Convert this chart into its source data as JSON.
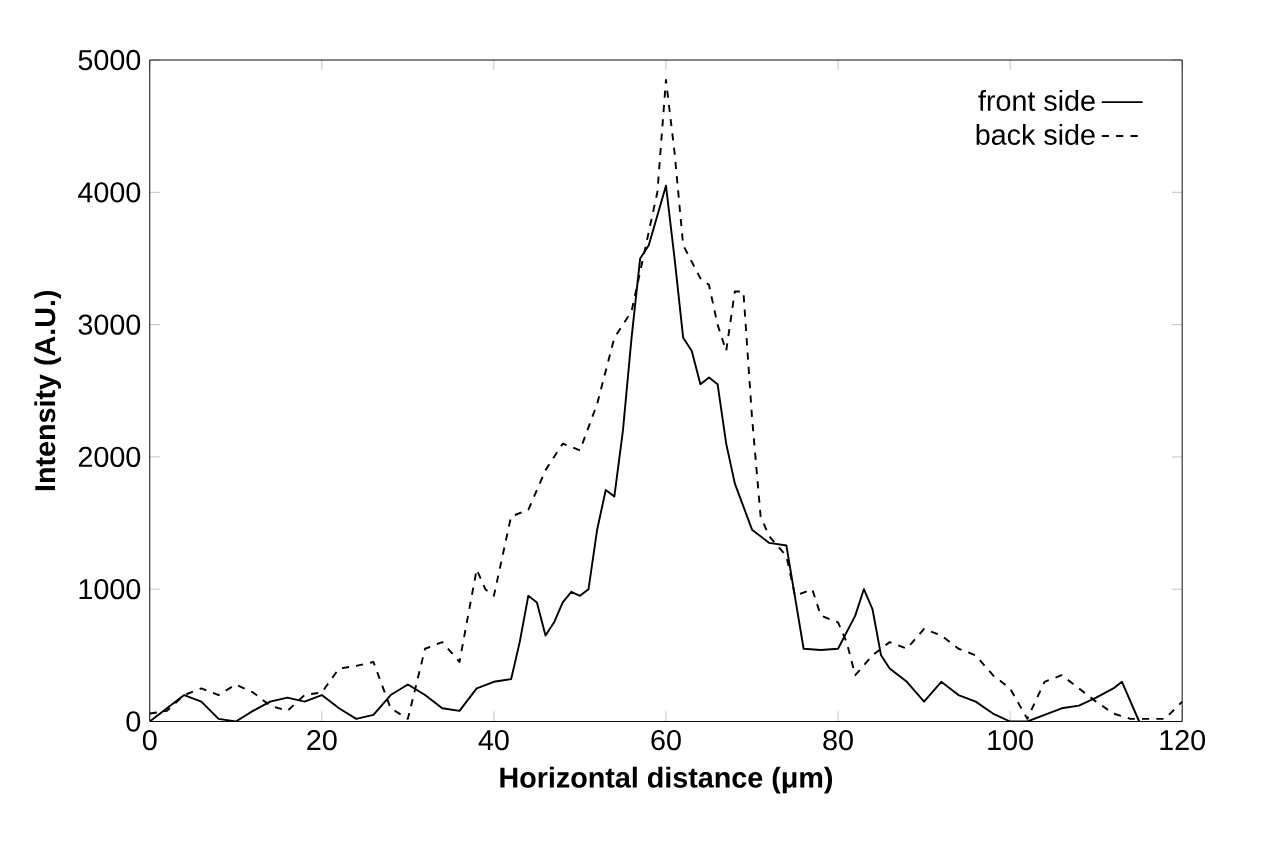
{
  "chart_data": {
    "type": "line",
    "xlabel": "Horizontal distance (μm)",
    "ylabel": "Intensity (A.U.)",
    "xlim": [
      0,
      120
    ],
    "ylim": [
      0,
      5000
    ],
    "xticks": [
      0,
      20,
      40,
      60,
      80,
      100,
      120
    ],
    "yticks": [
      0,
      1000,
      2000,
      3000,
      4000,
      5000
    ],
    "legend": "top right",
    "grid": false,
    "marker": "none",
    "series": [
      {
        "name": "front side",
        "color": "#000000",
        "line_style": "solid",
        "x": [
          0,
          2,
          4,
          6,
          8,
          10,
          12,
          14,
          16,
          18,
          20,
          22,
          24,
          26,
          28,
          30,
          32,
          34,
          36,
          38,
          40,
          42,
          43,
          44,
          45,
          46,
          47,
          48,
          49,
          50,
          51,
          52,
          53,
          54,
          55,
          56,
          57,
          58,
          60,
          61,
          62,
          63,
          64,
          65,
          66,
          67,
          68,
          70,
          72,
          74,
          76,
          78,
          80,
          82,
          83,
          84,
          85,
          86,
          88,
          90,
          92,
          94,
          96,
          98,
          100,
          102,
          104,
          106,
          108,
          110,
          112,
          113,
          115
        ],
        "values": [
          0,
          100,
          200,
          150,
          20,
          0,
          80,
          150,
          180,
          150,
          200,
          100,
          20,
          50,
          200,
          280,
          200,
          100,
          80,
          250,
          300,
          320,
          600,
          950,
          900,
          650,
          750,
          900,
          980,
          950,
          1000,
          1450,
          1750,
          1700,
          2200,
          2900,
          3500,
          3600,
          4050,
          3500,
          2900,
          2800,
          2550,
          2600,
          2550,
          2100,
          1800,
          1450,
          1350,
          1330,
          550,
          540,
          550,
          800,
          1000,
          850,
          500,
          400,
          300,
          150,
          300,
          200,
          150,
          60,
          0,
          0,
          50,
          100,
          120,
          180,
          250,
          300,
          0
        ]
      },
      {
        "name": "back side",
        "color": "#000000",
        "line_style": "dashed",
        "x": [
          0,
          2,
          4,
          6,
          8,
          10,
          12,
          14,
          16,
          18,
          20,
          22,
          24,
          26,
          28,
          30,
          32,
          34,
          36,
          38,
          39,
          40,
          42,
          44,
          46,
          48,
          50,
          52,
          54,
          55,
          56,
          58,
          59,
          60,
          61,
          62,
          64,
          65,
          66,
          67,
          68,
          69,
          70,
          71,
          72,
          74,
          75,
          77,
          78,
          80,
          81,
          82,
          84,
          86,
          88,
          90,
          92,
          94,
          96,
          98,
          100,
          102,
          104,
          106,
          108,
          110,
          112,
          114,
          118,
          120
        ],
        "values": [
          60,
          80,
          200,
          250,
          200,
          280,
          220,
          120,
          80,
          200,
          220,
          400,
          420,
          450,
          100,
          20,
          550,
          600,
          450,
          1150,
          1000,
          950,
          1550,
          1600,
          1900,
          2100,
          2050,
          2400,
          2900,
          3000,
          3100,
          3700,
          4000,
          4850,
          4300,
          3600,
          3350,
          3300,
          3000,
          2800,
          3250,
          3250,
          2300,
          1550,
          1400,
          1250,
          950,
          1000,
          800,
          750,
          600,
          350,
          500,
          600,
          550,
          700,
          650,
          550,
          500,
          350,
          250,
          20,
          300,
          350,
          250,
          150,
          60,
          20,
          20,
          150
        ]
      }
    ]
  }
}
